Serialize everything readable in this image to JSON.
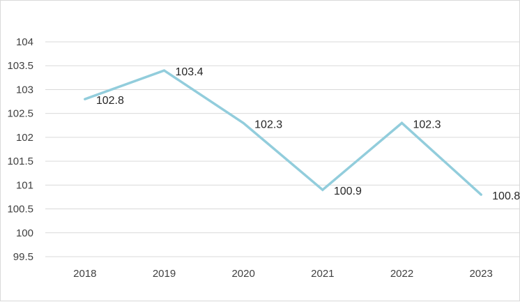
{
  "chart_data": {
    "type": "line",
    "categories": [
      "2018",
      "2019",
      "2020",
      "2021",
      "2022",
      "2023"
    ],
    "series": [
      {
        "values": [
          102.8,
          103.4,
          102.3,
          100.9,
          102.3,
          100.8
        ],
        "color": "#92cddc"
      }
    ],
    "data_labels": [
      "102.8",
      "103.4",
      "102.3",
      "100.9",
      "102.3",
      "100.8"
    ],
    "ylim": [
      99.5,
      104
    ],
    "ytick_values": [
      99.5,
      100,
      100.5,
      101,
      101.5,
      102,
      102.5,
      103,
      103.5,
      104
    ],
    "ytick_labels": [
      "99.5",
      "100",
      "100.5",
      "101",
      "101.5",
      "102",
      "102.5",
      "103",
      "103.5",
      "104"
    ],
    "grid": true,
    "legend": "none",
    "title": "",
    "xlabel": "",
    "ylabel": ""
  }
}
